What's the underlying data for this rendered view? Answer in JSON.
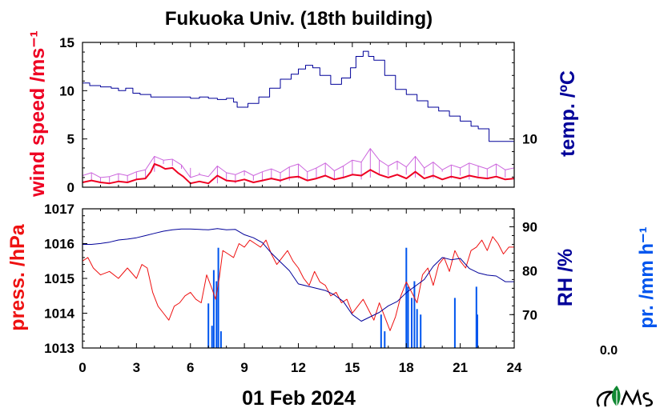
{
  "title": "Fukuoka Univ. (18th building)",
  "date_label": "01 Feb 2024",
  "colors": {
    "wind": "#ee0022",
    "wind_gust": "#cc66dd",
    "temp": "#000099",
    "pressure": "#ee1111",
    "rh": "#000099",
    "precip": "#0055ee",
    "logo": "#118833"
  },
  "chart_data": [
    {
      "type": "line",
      "panel": "top",
      "xlim": [
        0,
        24
      ],
      "x_ticks": [
        0,
        3,
        6,
        9,
        12,
        15,
        18,
        21,
        24
      ],
      "left_axis": {
        "label": "wind speed /ms⁻¹",
        "ylim": [
          0,
          15
        ],
        "ticks": [
          "0",
          "5",
          "10",
          "15"
        ]
      },
      "right_axis": {
        "label": "temp. /ºC",
        "ylim": [
          6.2,
          17.6
        ],
        "ticks": [
          "10"
        ]
      },
      "series": [
        {
          "axis": "right",
          "x": [
            0,
            0.4,
            1.0,
            1.6,
            2.0,
            2.4,
            2.8,
            3.2,
            3.8,
            4.5,
            5.2,
            6.0,
            6.5,
            7.0,
            7.5,
            8.0,
            8.4,
            8.6,
            9.2,
            9.8,
            10.4,
            11.0,
            11.6,
            12.0,
            12.4,
            12.8,
            13.2,
            13.8,
            14.4,
            14.9,
            15.2,
            15.6,
            15.9,
            16.2,
            16.8,
            17.4,
            18.0,
            18.6,
            19.2,
            19.8,
            20.4,
            21.0,
            21.6,
            22.0,
            22.6,
            24.0
          ],
          "y": [
            14.4,
            14.2,
            14.1,
            14.0,
            13.8,
            14.0,
            13.6,
            13.5,
            13.3,
            13.3,
            13.3,
            13.2,
            13.3,
            13.2,
            13.1,
            13.2,
            12.9,
            12.5,
            12.8,
            13.3,
            14.0,
            14.7,
            15.1,
            15.5,
            15.8,
            15.6,
            15.0,
            14.3,
            14.8,
            15.6,
            16.5,
            16.9,
            16.5,
            16.2,
            15.0,
            13.9,
            13.5,
            13.0,
            12.5,
            12.2,
            11.8,
            11.4,
            11.0,
            10.8,
            9.8,
            9.8
          ]
        },
        {
          "axis": "left",
          "x": [
            0,
            0.5,
            1.0,
            1.5,
            2.0,
            2.5,
            3.0,
            3.5,
            3.8,
            4.0,
            4.3,
            4.6,
            5.0,
            5.3,
            5.6,
            6.0,
            6.5,
            7.0,
            7.5,
            8.0,
            8.5,
            9.0,
            9.5,
            10.0,
            10.5,
            11.0,
            11.5,
            12.0,
            12.5,
            13.0,
            13.5,
            14.0,
            14.5,
            15.0,
            15.5,
            16.0,
            16.5,
            17.0,
            17.5,
            18.0,
            18.5,
            19.0,
            19.5,
            20.0,
            20.5,
            21.0,
            21.5,
            22.0,
            22.5,
            23.0,
            23.5,
            24.0
          ],
          "y": [
            0.5,
            0.7,
            0.5,
            0.4,
            0.6,
            0.5,
            0.8,
            0.9,
            1.6,
            2.4,
            2.2,
            1.9,
            2.0,
            1.5,
            1.1,
            0.4,
            0.6,
            0.4,
            1.2,
            0.7,
            0.6,
            0.8,
            0.5,
            0.7,
            0.9,
            0.7,
            1.0,
            1.1,
            0.7,
            0.9,
            1.2,
            0.8,
            1.0,
            1.3,
            1.2,
            1.8,
            1.3,
            1.0,
            1.3,
            0.9,
            1.6,
            0.9,
            1.2,
            0.8,
            1.1,
            0.9,
            1.2,
            1.0,
            0.9,
            1.1,
            0.8,
            0.9
          ]
        },
        {
          "axis": "left",
          "x": [
            0,
            0.5,
            1.0,
            1.5,
            2.0,
            2.5,
            3.0,
            3.5,
            4.0,
            4.5,
            5.0,
            5.5,
            6.0,
            6.5,
            7.0,
            7.5,
            8.0,
            8.5,
            9.0,
            9.5,
            10.0,
            10.5,
            11.0,
            11.5,
            12.0,
            12.5,
            13.0,
            13.5,
            14.0,
            14.5,
            15.0,
            15.5,
            16.0,
            16.5,
            17.0,
            17.5,
            18.0,
            18.5,
            19.0,
            19.5,
            20.0,
            20.5,
            21.0,
            21.5,
            22.0,
            22.5,
            23.0,
            23.5,
            24.0
          ],
          "y": [
            1.2,
            1.5,
            1.0,
            1.1,
            1.4,
            1.2,
            1.6,
            1.8,
            3.2,
            2.8,
            2.9,
            2.3,
            1.0,
            1.3,
            1.1,
            2.2,
            1.5,
            1.3,
            1.7,
            1.2,
            1.6,
            1.9,
            1.5,
            2.1,
            2.4,
            1.6,
            2.0,
            2.5,
            1.7,
            2.2,
            2.8,
            2.6,
            4.0,
            2.8,
            2.2,
            2.7,
            2.1,
            3.2,
            2.0,
            2.6,
            1.8,
            2.3,
            2.0,
            2.5,
            2.2,
            1.9,
            2.4,
            1.8,
            2.0
          ]
        }
      ]
    },
    {
      "type": "line",
      "panel": "bottom",
      "xlim": [
        0,
        24
      ],
      "x_ticks": [
        0,
        3,
        6,
        9,
        12,
        15,
        18,
        21,
        24
      ],
      "x_tick_labels": [
        "0",
        "3",
        "6",
        "9",
        "12",
        "15",
        "18",
        "21",
        "24"
      ],
      "left_axis": {
        "label": "press. /hPa",
        "ylim": [
          1013,
          1017
        ],
        "ticks": [
          "1013",
          "1014",
          "1015",
          "1016",
          "1017"
        ]
      },
      "right_axis": {
        "label": "RH /%",
        "ylim": [
          62.4,
          94.1
        ],
        "ticks": [
          "70",
          "80",
          "90"
        ]
      },
      "precip_axis": {
        "label": "pr. /mm h⁻¹",
        "value_label": "0.0"
      },
      "series": [
        {
          "axis": "left",
          "x": [
            0,
            0.3,
            0.6,
            1.0,
            1.5,
            2.0,
            2.5,
            3.0,
            3.3,
            3.6,
            3.9,
            4.2,
            4.5,
            4.8,
            5.1,
            5.4,
            5.7,
            6.0,
            6.3,
            6.6,
            6.9,
            7.2,
            7.4,
            7.6,
            7.8,
            8.1,
            8.4,
            8.7,
            9.0,
            9.3,
            9.6,
            9.9,
            10.2,
            10.5,
            10.8,
            11.1,
            11.4,
            11.7,
            12.0,
            12.3,
            12.6,
            12.9,
            13.2,
            13.5,
            13.8,
            14.1,
            14.4,
            14.7,
            15.0,
            15.3,
            15.6,
            15.9,
            16.2,
            16.5,
            16.8,
            17.1,
            17.4,
            17.7,
            18.0,
            18.3,
            18.6,
            18.9,
            19.2,
            19.5,
            19.8,
            20.1,
            20.4,
            20.7,
            21.0,
            21.3,
            21.6,
            21.9,
            22.2,
            22.5,
            22.8,
            23.1,
            23.4,
            23.7,
            24.0
          ],
          "y": [
            1015.5,
            1015.6,
            1015.3,
            1015.1,
            1015.2,
            1015.0,
            1015.3,
            1015.0,
            1015.4,
            1015.3,
            1014.6,
            1014.2,
            1014.0,
            1013.8,
            1014.2,
            1014.3,
            1014.5,
            1014.6,
            1014.4,
            1014.3,
            1015.1,
            1014.7,
            1014.4,
            1015.0,
            1015.8,
            1015.7,
            1015.6,
            1016.0,
            1015.9,
            1016.1,
            1016.0,
            1015.9,
            1016.1,
            1015.7,
            1015.4,
            1015.6,
            1015.8,
            1015.5,
            1015.3,
            1015.0,
            1014.8,
            1015.2,
            1014.9,
            1014.8,
            1014.5,
            1014.6,
            1014.3,
            1014.4,
            1014.0,
            1014.2,
            1014.4,
            1014.1,
            1013.8,
            1014.3,
            1013.9,
            1013.5,
            1013.9,
            1014.5,
            1014.9,
            1014.6,
            1014.3,
            1015.1,
            1015.3,
            1014.8,
            1015.4,
            1015.6,
            1015.2,
            1015.8,
            1015.5,
            1015.3,
            1015.8,
            1015.9,
            1016.1,
            1015.8,
            1016.2,
            1016.0,
            1015.7,
            1015.9,
            1015.9
          ]
        },
        {
          "axis": "right",
          "x": [
            0,
            0.5,
            1.0,
            1.5,
            2.0,
            2.5,
            3.0,
            3.5,
            4.0,
            4.5,
            5.0,
            5.5,
            6.0,
            6.5,
            7.0,
            7.5,
            8.0,
            8.5,
            9.0,
            9.5,
            10.0,
            10.5,
            11.0,
            11.5,
            12.0,
            12.5,
            13.0,
            13.5,
            14.0,
            14.5,
            15.0,
            15.5,
            16.0,
            16.5,
            17.0,
            17.5,
            18.0,
            18.5,
            19.0,
            19.5,
            20.0,
            20.5,
            21.0,
            21.5,
            22.0,
            22.5,
            23.0,
            23.5,
            24.0
          ],
          "y": [
            86.0,
            86.0,
            86.2,
            86.5,
            87.0,
            87.2,
            87.5,
            88.0,
            88.5,
            89.0,
            89.3,
            89.5,
            89.5,
            89.4,
            89.3,
            89.6,
            89.3,
            89.4,
            88.2,
            87.5,
            86.4,
            84.0,
            82.0,
            80.0,
            77.0,
            76.5,
            76.0,
            75.5,
            74.5,
            73.0,
            70.0,
            68.5,
            69.5,
            70.5,
            72.0,
            73.0,
            75.0,
            76.5,
            78.0,
            81.0,
            83.0,
            82.5,
            82.8,
            80.5,
            79.5,
            79.0,
            78.8,
            77.5,
            77.5
          ]
        }
      ],
      "precip_bars": {
        "x": [
          7.0,
          7.2,
          7.3,
          7.45,
          7.55,
          7.7,
          16.6,
          16.8,
          18.0,
          18.1,
          18.3,
          18.45,
          18.6,
          18.8,
          20.7,
          21.9,
          21.95
        ],
        "h": [
          0.4,
          0.2,
          0.7,
          0.6,
          0.9,
          0.15,
          0.3,
          0.15,
          0.9,
          0.55,
          0.45,
          0.6,
          0.35,
          0.3,
          0.45,
          0.55,
          0.3
        ]
      }
    }
  ],
  "logo": {
    "name": "MES logo"
  }
}
